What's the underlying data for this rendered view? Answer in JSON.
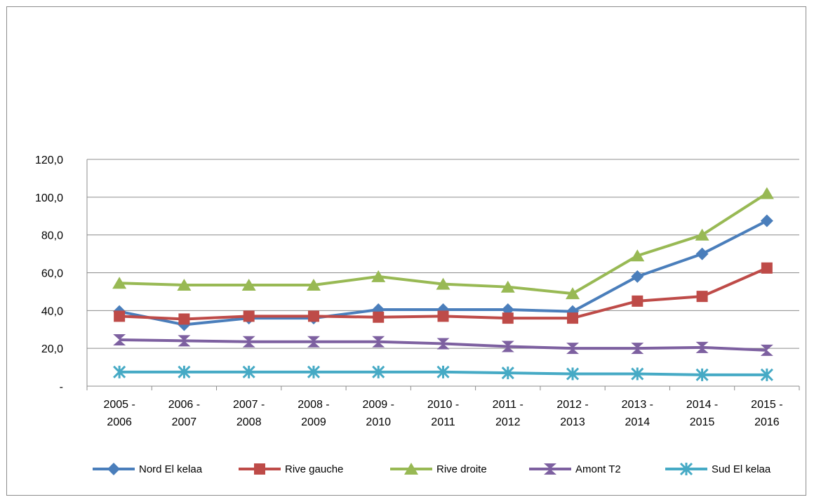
{
  "chart_data": {
    "type": "line",
    "title": "",
    "xlabel": "",
    "ylabel": "",
    "categories": [
      [
        "2005 -",
        "2006"
      ],
      [
        "2006 -",
        "2007"
      ],
      [
        "2007 -",
        "2008"
      ],
      [
        "2008 -",
        "2009"
      ],
      [
        "2009 -",
        "2010"
      ],
      [
        "2010 -",
        "2011"
      ],
      [
        "2011 -",
        "2012"
      ],
      [
        "2012 -",
        "2013"
      ],
      [
        "2013 -",
        "2014"
      ],
      [
        "2014 -",
        "2015"
      ],
      [
        "2015 -",
        "2016"
      ]
    ],
    "ylim": [
      0,
      120
    ],
    "y_ticks": [
      0,
      20,
      40,
      60,
      80,
      100,
      120
    ],
    "y_tick_labels": [
      "-",
      "20,0",
      "40,0",
      "60,0",
      "80,0",
      "100,0",
      "120,0"
    ],
    "grid": true,
    "legend_position": "bottom",
    "series": [
      {
        "name": "Nord El kelaa",
        "color": "#4a7ebb",
        "marker": "diamond",
        "values": [
          39.5,
          32.5,
          36.0,
          36.0,
          40.5,
          40.5,
          40.5,
          39.5,
          58.0,
          70.0,
          87.5
        ]
      },
      {
        "name": "Rive gauche",
        "color": "#be4b48",
        "marker": "square",
        "values": [
          37.0,
          35.5,
          37.0,
          37.0,
          36.5,
          37.0,
          36.0,
          36.0,
          45.0,
          47.5,
          62.5
        ]
      },
      {
        "name": "Rive droite",
        "color": "#98b954",
        "marker": "triangle",
        "values": [
          54.5,
          53.5,
          53.5,
          53.5,
          58.0,
          54.0,
          52.5,
          49.0,
          69.0,
          80.0,
          102.0
        ]
      },
      {
        "name": "Amont T2",
        "color": "#7d60a0",
        "marker": "hourglass",
        "values": [
          24.5,
          24.0,
          23.5,
          23.5,
          23.5,
          22.5,
          21.0,
          20.0,
          20.0,
          20.5,
          19.0
        ]
      },
      {
        "name": "Sud El kelaa",
        "color": "#46aac5",
        "marker": "star",
        "values": [
          7.5,
          7.5,
          7.5,
          7.5,
          7.5,
          7.5,
          7.0,
          6.5,
          6.5,
          6.0,
          6.0
        ]
      }
    ]
  }
}
